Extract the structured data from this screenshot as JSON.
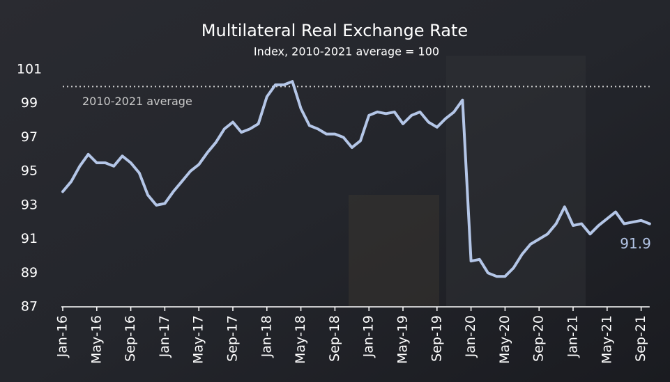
{
  "chart_data": {
    "type": "line",
    "title": "Multilateral Real Exchange Rate",
    "subtitle": "Index, 2010-2021 average = 100",
    "categories": [
      "Jan-16",
      null,
      null,
      null,
      "May-16",
      null,
      null,
      null,
      "Sep-16",
      null,
      null,
      null,
      "Jan-17",
      null,
      null,
      null,
      "May-17",
      null,
      null,
      null,
      "Sep-17",
      null,
      null,
      null,
      "Jan-18",
      null,
      null,
      null,
      "May-18",
      null,
      null,
      null,
      "Sep-18",
      null,
      null,
      null,
      "Jan-19",
      null,
      null,
      null,
      "May-19",
      null,
      null,
      null,
      "Sep-19",
      null,
      null,
      null,
      "Jan-20",
      null,
      null,
      null,
      "May-20",
      null,
      null,
      null,
      "Sep-20",
      null,
      null,
      null,
      "Jan-21",
      null,
      null,
      null,
      "May-21",
      null,
      null,
      null,
      "Sep-21",
      null
    ],
    "series": [
      {
        "color": "#b4c6e7",
        "values": [
          93.8,
          94.4,
          95.3,
          96.0,
          95.5,
          95.5,
          95.3,
          95.9,
          95.5,
          94.9,
          93.6,
          93.0,
          93.1,
          93.8,
          94.4,
          95.0,
          95.4,
          96.1,
          96.7,
          97.5,
          97.9,
          97.3,
          97.5,
          97.8,
          99.4,
          100.1,
          100.1,
          100.3,
          98.7,
          97.7,
          97.5,
          97.2,
          97.2,
          97.0,
          96.4,
          96.8,
          98.3,
          98.5,
          98.4,
          98.5,
          97.8,
          98.3,
          98.5,
          97.9,
          97.6,
          98.1,
          98.5,
          99.2,
          89.7,
          89.8,
          89.0,
          88.8,
          88.8,
          89.3,
          90.1,
          90.7,
          91.0,
          91.3,
          91.9,
          92.9,
          91.8,
          91.9,
          91.3,
          91.8,
          92.2,
          92.6,
          91.9,
          92.0,
          92.1,
          91.9
        ]
      }
    ],
    "reference_line": {
      "value": 100,
      "label": "2010-2021 average"
    },
    "ylim": [
      87,
      101
    ],
    "yticks": [
      87,
      89,
      91,
      93,
      95,
      97,
      99,
      101
    ],
    "grid": false
  }
}
